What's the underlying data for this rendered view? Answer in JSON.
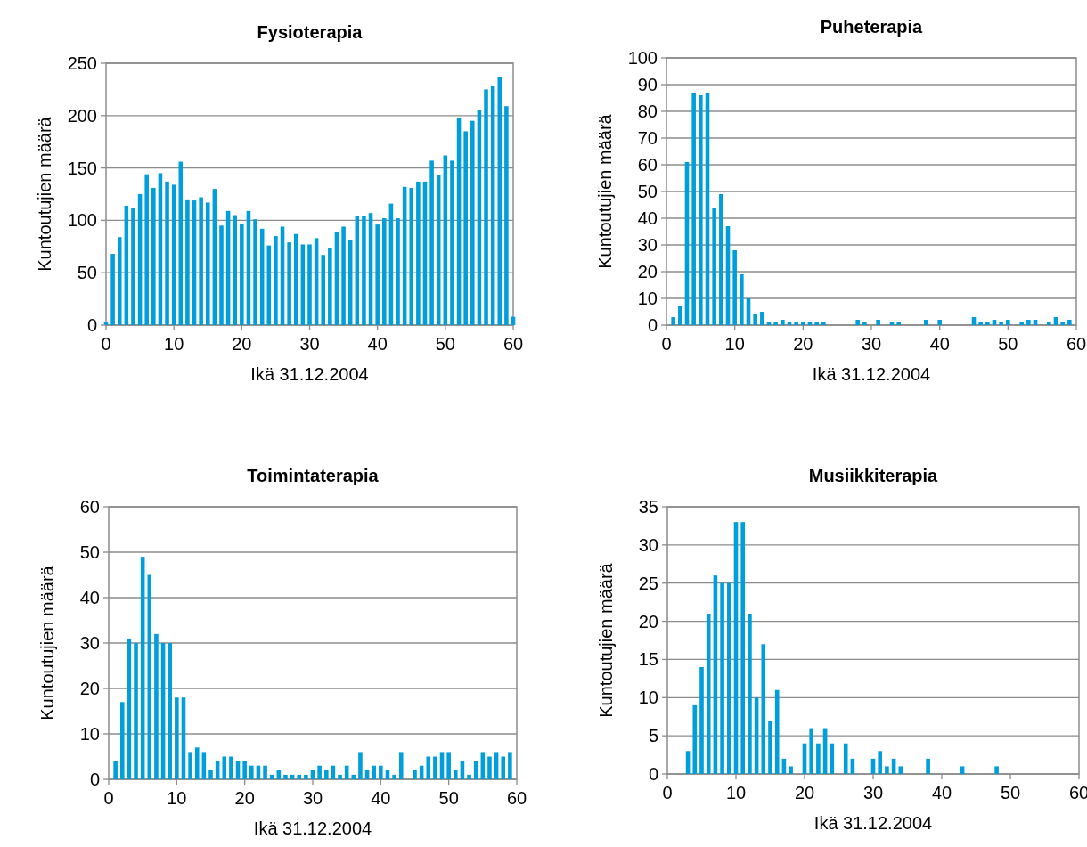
{
  "chart_data": [
    {
      "type": "bar",
      "title": "Fysioterapia",
      "xlabel": "Ikä 31.12.2004",
      "ylabel": "Kuntoutujien määrä",
      "color": "#009fdb",
      "grid": "y",
      "xlim": [
        0,
        60
      ],
      "xticks": [
        0,
        10,
        20,
        30,
        40,
        50,
        60
      ],
      "ylim": [
        0,
        250
      ],
      "yticks": [
        0,
        50,
        100,
        150,
        200,
        250
      ],
      "x": [
        0,
        1,
        2,
        3,
        4,
        5,
        6,
        7,
        8,
        9,
        10,
        11,
        12,
        13,
        14,
        15,
        16,
        17,
        18,
        19,
        20,
        21,
        22,
        23,
        24,
        25,
        26,
        27,
        28,
        29,
        30,
        31,
        32,
        33,
        34,
        35,
        36,
        37,
        38,
        39,
        40,
        41,
        42,
        43,
        44,
        45,
        46,
        47,
        48,
        49,
        50,
        51,
        52,
        53,
        54,
        55,
        56,
        57,
        58,
        59,
        60
      ],
      "values": [
        3,
        68,
        84,
        114,
        112,
        125,
        144,
        131,
        145,
        137,
        134,
        156,
        120,
        119,
        122,
        117,
        130,
        95,
        109,
        105,
        97,
        109,
        101,
        92,
        76,
        85,
        94,
        79,
        87,
        77,
        77,
        83,
        67,
        74,
        89,
        94,
        81,
        104,
        104,
        107,
        96,
        102,
        116,
        102,
        132,
        131,
        137,
        137,
        157,
        143,
        162,
        157,
        198,
        185,
        195,
        205,
        225,
        228,
        237,
        209,
        8
      ]
    },
    {
      "type": "bar",
      "title": "Puheterapia",
      "xlabel": "Ikä 31.12.2004",
      "ylabel": "Kuntoutujien määrä",
      "color": "#009fdb",
      "grid": "y",
      "xlim": [
        0,
        60
      ],
      "xticks": [
        0,
        10,
        20,
        30,
        40,
        50,
        60
      ],
      "ylim": [
        0,
        100
      ],
      "yticks": [
        0,
        10,
        20,
        30,
        40,
        50,
        60,
        70,
        80,
        90,
        100
      ],
      "x": [
        0,
        1,
        2,
        3,
        4,
        5,
        6,
        7,
        8,
        9,
        10,
        11,
        12,
        13,
        14,
        15,
        16,
        17,
        18,
        19,
        20,
        21,
        22,
        23,
        24,
        25,
        26,
        27,
        28,
        29,
        30,
        31,
        32,
        33,
        34,
        35,
        36,
        37,
        38,
        39,
        40,
        41,
        42,
        43,
        44,
        45,
        46,
        47,
        48,
        49,
        50,
        51,
        52,
        53,
        54,
        55,
        56,
        57,
        58,
        59,
        60
      ],
      "values": [
        0,
        3,
        7,
        61,
        87,
        86,
        87,
        44,
        49,
        37,
        28,
        19,
        10,
        4,
        5,
        1,
        1,
        2,
        1,
        1,
        1,
        1,
        1,
        1,
        0,
        0,
        0,
        0,
        2,
        1,
        0,
        2,
        0,
        1,
        1,
        0,
        0,
        0,
        2,
        0,
        2,
        0,
        0,
        0,
        0,
        3,
        1,
        1,
        2,
        1,
        2,
        0,
        1,
        2,
        2,
        0,
        1,
        3,
        1,
        2,
        0
      ]
    },
    {
      "type": "bar",
      "title": "Toimintaterapia",
      "xlabel": "Ikä 31.12.2004",
      "ylabel": "Kuntoutujien määrä",
      "color": "#009fdb",
      "grid": "y",
      "xlim": [
        0,
        60
      ],
      "xticks": [
        0,
        10,
        20,
        30,
        40,
        50,
        60
      ],
      "ylim": [
        0,
        60
      ],
      "yticks": [
        0,
        10,
        20,
        30,
        40,
        50,
        60
      ],
      "x": [
        0,
        1,
        2,
        3,
        4,
        5,
        6,
        7,
        8,
        9,
        10,
        11,
        12,
        13,
        14,
        15,
        16,
        17,
        18,
        19,
        20,
        21,
        22,
        23,
        24,
        25,
        26,
        27,
        28,
        29,
        30,
        31,
        32,
        33,
        34,
        35,
        36,
        37,
        38,
        39,
        40,
        41,
        42,
        43,
        44,
        45,
        46,
        47,
        48,
        49,
        50,
        51,
        52,
        53,
        54,
        55,
        56,
        57,
        58,
        59,
        60
      ],
      "values": [
        0,
        4,
        17,
        31,
        30,
        49,
        45,
        32,
        30,
        30,
        18,
        18,
        6,
        7,
        6,
        2,
        4,
        5,
        5,
        4,
        4,
        3,
        3,
        3,
        1,
        2,
        1,
        1,
        1,
        1,
        2,
        3,
        2,
        3,
        1,
        3,
        1,
        6,
        2,
        3,
        3,
        2,
        1,
        6,
        0,
        2,
        3,
        5,
        5,
        6,
        6,
        2,
        4,
        1,
        4,
        6,
        5,
        6,
        5,
        6,
        0
      ]
    },
    {
      "type": "bar",
      "title": "Musiikkiterapia",
      "xlabel": "Ikä 31.12.2004",
      "ylabel": "Kuntoutujien määrä",
      "color": "#009fdb",
      "grid": "y",
      "xlim": [
        0,
        60
      ],
      "xticks": [
        0,
        10,
        20,
        30,
        40,
        50,
        60
      ],
      "ylim": [
        0,
        35
      ],
      "yticks": [
        0,
        5,
        10,
        15,
        20,
        25,
        30,
        35
      ],
      "x": [
        0,
        1,
        2,
        3,
        4,
        5,
        6,
        7,
        8,
        9,
        10,
        11,
        12,
        13,
        14,
        15,
        16,
        17,
        18,
        19,
        20,
        21,
        22,
        23,
        24,
        25,
        26,
        27,
        28,
        29,
        30,
        31,
        32,
        33,
        34,
        35,
        36,
        37,
        38,
        39,
        40,
        41,
        42,
        43,
        44,
        45,
        46,
        47,
        48,
        49,
        50,
        51,
        52,
        53,
        54,
        55,
        56,
        57,
        58,
        59,
        60
      ],
      "values": [
        0,
        0,
        0,
        3,
        9,
        14,
        21,
        26,
        25,
        25,
        33,
        33,
        21,
        10,
        17,
        7,
        11,
        2,
        1,
        0,
        4,
        6,
        4,
        6,
        4,
        0,
        4,
        2,
        0,
        0,
        2,
        3,
        1,
        2,
        1,
        0,
        0,
        0,
        2,
        0,
        0,
        0,
        0,
        1,
        0,
        0,
        0,
        0,
        1,
        0,
        0,
        0,
        0,
        0,
        0,
        0,
        0,
        0,
        0,
        0,
        0
      ]
    }
  ]
}
